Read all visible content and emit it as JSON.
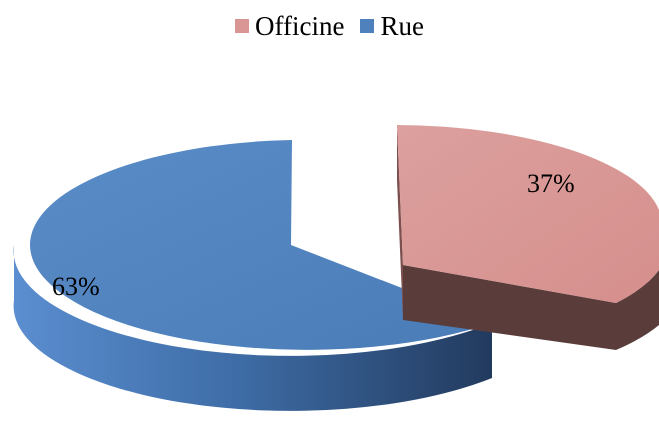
{
  "legend": {
    "items": [
      {
        "label": "Officine",
        "color": "#d99694"
      },
      {
        "label": "Rue",
        "color": "#4f81bd"
      }
    ]
  },
  "colors": {
    "officine_top": "#d99694",
    "officine_side": "#5a3d3b",
    "rue_top": "#4f81bd",
    "rue_side_dark": "#223a5e",
    "rue_side_light": "#5b8ed0"
  },
  "chart_data": {
    "type": "pie",
    "style": "3d-exploded",
    "categories": [
      "Officine",
      "Rue"
    ],
    "values": [
      37,
      63
    ],
    "data_labels": [
      "37%",
      "63%"
    ],
    "legend_position": "top"
  }
}
